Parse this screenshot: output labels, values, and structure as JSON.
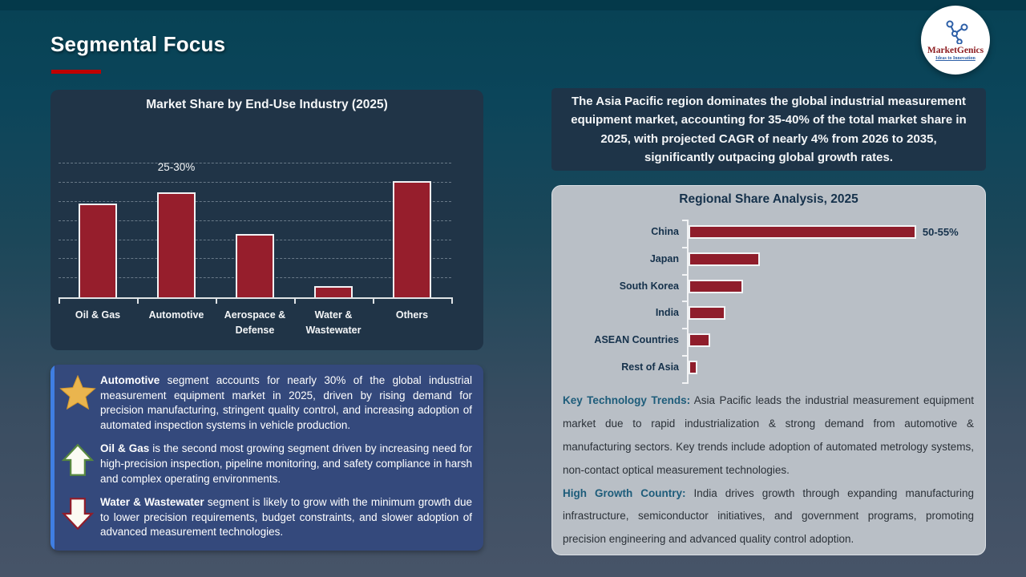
{
  "header": {
    "title": "Segmental Focus"
  },
  "logo": {
    "brand": "MarketGenics",
    "tagline": "Ideas to Innovation"
  },
  "colors": {
    "accent_red": "#c00000",
    "bar_fill": "#961e2c",
    "panel_navy": "#203447",
    "summary_navy": "#1e3448",
    "highlight_blue": "#34497c",
    "stripe_blue": "#3f7ee2",
    "gray_panel": "#b9bfc6",
    "teal_lead": "#1d5c7a",
    "dark_text": "#15314b",
    "star_gold": "#eab54e",
    "arrow_green": "#57883f",
    "arrow_red": "#8f1d2b"
  },
  "icons": [
    "molecule-icon",
    "star-icon",
    "up-arrow-icon",
    "down-arrow-icon"
  ],
  "chart_data": [
    {
      "type": "bar",
      "orientation": "vertical",
      "title": "Market Share by End-Use Industry (2025)",
      "categories": [
        "Oil & Gas",
        "Automotive",
        "Aerospace & Defense",
        "Water & Wastewater",
        "Others"
      ],
      "values": [
        24.5,
        27.5,
        16.5,
        3,
        30.5
      ],
      "unit": "%",
      "point_labels": [
        "",
        "25-30%",
        "",
        "",
        ""
      ],
      "ylim": [
        0,
        42.6
      ],
      "grid_step": 5,
      "grid_max": 35,
      "grid": "dashed-horizontal",
      "legend": "none",
      "xlabel": "",
      "ylabel": ""
    },
    {
      "type": "bar",
      "orientation": "horizontal",
      "title": "Regional Share Analysis, 2025",
      "categories": [
        "China",
        "Japan",
        "South Korea",
        "India",
        "ASEAN Countries",
        "Rest of Asia"
      ],
      "values": [
        52.5,
        16.5,
        12.5,
        8.5,
        5,
        2
      ],
      "unit": "%",
      "point_labels": [
        "50-55%",
        "",
        "",
        "",
        "",
        ""
      ],
      "xlim": [
        0,
        66.2
      ],
      "grid": "off",
      "legend": "none",
      "xlabel": "",
      "ylabel": ""
    }
  ],
  "asia_summary": {
    "text": "The Asia Pacific region dominates the global industrial measurement equipment market, accounting for 35-40% of the total market share in 2025, with projected CAGR of nearly 4% from 2026 to 2035, significantly outpacing global growth rates."
  },
  "highlight_box": {
    "items": [
      {
        "icon": "star-icon",
        "lead": "Automotive",
        "text": " segment accounts for nearly 30% of the global industrial measurement equipment market in 2025, driven by rising demand for precision manufacturing, stringent quality control, and increasing adoption of automated inspection systems in vehicle production."
      },
      {
        "icon": "up-arrow-icon",
        "lead": "Oil & Gas",
        "text": " is the second most growing segment driven by increasing need for high-precision inspection, pipeline monitoring, and safety compliance in harsh and complex operating environments."
      },
      {
        "icon": "down-arrow-icon",
        "lead": "Water & Wastewater",
        "text": " segment is likely to grow with the minimum growth due to lower precision requirements, budget constraints, and slower adoption of advanced measurement technologies."
      }
    ]
  },
  "trends": {
    "items": [
      {
        "lead": "Key Technology Trends:",
        "text": " Asia Pacific leads the industrial measurement equipment market due to rapid industrialization & strong demand from automotive & manufacturing sectors. Key trends include adoption of automated metrology systems, non-contact optical measurement technologies."
      },
      {
        "lead": "High Growth Country:",
        "text": " India drives growth through expanding manufacturing infrastructure, semiconductor initiatives, and government programs, promoting precision engineering and advanced quality control adoption."
      }
    ]
  }
}
